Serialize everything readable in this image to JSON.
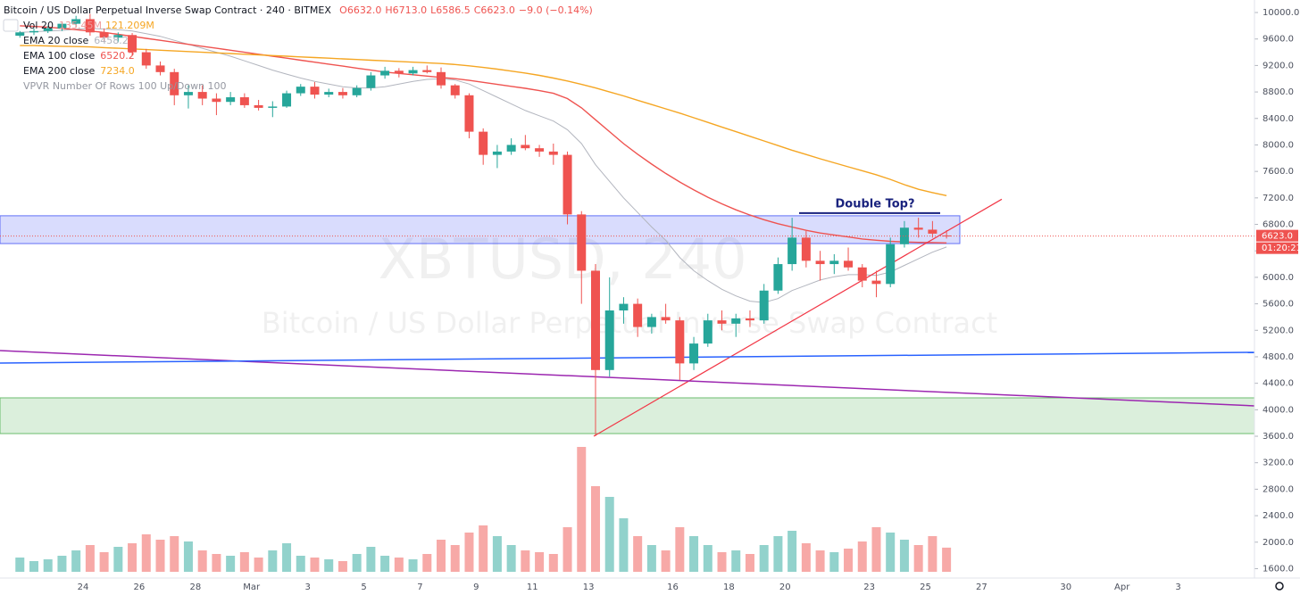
{
  "chart_data": {
    "type": "candlestick",
    "title": "Bitcoin / US Dollar Perpetual Inverse Swap Contract · 240 · BITMEX",
    "header": {
      "open": "O6632.0",
      "high": "H6713.0",
      "low": "L6586.5",
      "close": "C6623.0",
      "change": "−9.0 (−0.14%)"
    },
    "volume_legend": {
      "name": "Vol 20",
      "values": [
        "135.45M",
        "121.209M"
      ]
    },
    "vpvr_legend": "VPVR Number Of Rows 100 Up/Down 100",
    "watermark": [
      "XBTUSD, 240",
      "Bitcoin / US Dollar Perpetual Inverse Swap Contract"
    ],
    "categories": [
      null,
      null,
      null,
      null,
      null,
      "24",
      null,
      null,
      null,
      "26",
      null,
      null,
      null,
      "28",
      null,
      null,
      null,
      "Mar",
      null,
      null,
      null,
      "3",
      null,
      null,
      null,
      "5",
      null,
      null,
      null,
      "7",
      null,
      null,
      null,
      "9",
      null,
      null,
      null,
      "11",
      null,
      null,
      null,
      "13",
      null,
      null,
      null,
      null,
      null,
      "16",
      null,
      null,
      null,
      "18",
      null,
      null,
      null,
      "20",
      null,
      null,
      null,
      null,
      null,
      "23",
      null,
      null,
      null,
      "25",
      null,
      null,
      null,
      "27",
      null,
      null,
      null,
      null,
      null,
      "30",
      null,
      null,
      null,
      "Apr",
      null,
      null,
      null,
      "3",
      null
    ],
    "open": [
      9650,
      9700,
      9720,
      9760,
      9830,
      9900,
      9700,
      9620,
      9660,
      9400,
      9200,
      9100,
      8750,
      8800,
      8700,
      8650,
      8720,
      8600,
      8560,
      8580,
      8780,
      8880,
      8760,
      8800,
      8750,
      8860,
      9050,
      9120,
      9080,
      9130,
      9100,
      8900,
      8750,
      8200,
      7850,
      7900,
      8000,
      7950,
      7900,
      7850,
      6950,
      6100,
      4600,
      5500,
      5600,
      5250,
      5400,
      5350,
      4700,
      5000,
      5350,
      5300,
      5380,
      5350,
      5800,
      6200,
      6600,
      6250,
      6200,
      6250,
      6150,
      5950,
      5900,
      6500,
      6750,
      6720,
      6632,
      null,
      null,
      null,
      null,
      null,
      null,
      null,
      null,
      null,
      null,
      null,
      null,
      null,
      null,
      null,
      null,
      null,
      null
    ],
    "high": [
      9720,
      9760,
      9800,
      9850,
      9950,
      9980,
      9760,
      9700,
      9690,
      9450,
      9260,
      9150,
      8900,
      8900,
      8780,
      8800,
      8780,
      8680,
      8660,
      8820,
      8920,
      8950,
      8850,
      8860,
      8900,
      9100,
      9180,
      9160,
      9180,
      9200,
      9170,
      8920,
      8780,
      8250,
      8000,
      8100,
      8150,
      8000,
      8020,
      7900,
      7000,
      6200,
      6000,
      5700,
      5680,
      5450,
      5600,
      5400,
      5100,
      5450,
      5500,
      5450,
      5500,
      5900,
      6300,
      6900,
      6700,
      6400,
      6350,
      6450,
      6200,
      6100,
      6600,
      6850,
      6900,
      6850,
      6713,
      null,
      null,
      null,
      null,
      null,
      null,
      null,
      null,
      null,
      null,
      null,
      null,
      null,
      null,
      null,
      null,
      null,
      null
    ],
    "low": [
      9620,
      9660,
      9690,
      9720,
      9780,
      9650,
      9560,
      9550,
      9350,
      9150,
      9050,
      8600,
      8550,
      8600,
      8450,
      8600,
      8560,
      8520,
      8420,
      8560,
      8740,
      8700,
      8720,
      8700,
      8720,
      8820,
      9000,
      9020,
      9050,
      9080,
      8850,
      8700,
      8100,
      7700,
      7650,
      7850,
      7920,
      7820,
      7700,
      6800,
      5600,
      3600,
      4500,
      5300,
      5100,
      5150,
      5300,
      4450,
      4600,
      4950,
      5200,
      5100,
      5250,
      5300,
      5750,
      6100,
      6150,
      5950,
      6050,
      6100,
      5850,
      5700,
      5850,
      6450,
      6600,
      6600,
      6586.5,
      null,
      null,
      null,
      null,
      null,
      null,
      null,
      null,
      null,
      null,
      null,
      null,
      null,
      null,
      null,
      null,
      null,
      null
    ],
    "close": [
      9700,
      9720,
      9760,
      9830,
      9900,
      9700,
      9620,
      9660,
      9400,
      9200,
      9100,
      8750,
      8800,
      8700,
      8650,
      8720,
      8600,
      8560,
      8580,
      8780,
      8880,
      8760,
      8800,
      8750,
      8860,
      9050,
      9120,
      9080,
      9130,
      9100,
      8900,
      8750,
      8200,
      7850,
      7900,
      8000,
      7950,
      7900,
      7850,
      6950,
      6100,
      4600,
      5500,
      5600,
      5250,
      5400,
      5350,
      4700,
      5000,
      5350,
      5300,
      5380,
      5350,
      5800,
      6200,
      6600,
      6250,
      6200,
      6250,
      6150,
      5950,
      5900,
      6500,
      6750,
      6720,
      6660,
      6623,
      null,
      null,
      null,
      null,
      null,
      null,
      null,
      null,
      null,
      null,
      null,
      null,
      null,
      null,
      null,
      null,
      null,
      null
    ],
    "volume": [
      80,
      60,
      70,
      90,
      120,
      150,
      110,
      140,
      160,
      210,
      180,
      200,
      170,
      120,
      100,
      90,
      110,
      80,
      120,
      160,
      90,
      80,
      70,
      60,
      100,
      140,
      90,
      80,
      70,
      100,
      180,
      150,
      220,
      260,
      200,
      150,
      120,
      110,
      100,
      250,
      700,
      480,
      420,
      300,
      200,
      150,
      120,
      250,
      200,
      150,
      110,
      120,
      100,
      150,
      200,
      230,
      160,
      120,
      110,
      130,
      170,
      250,
      220,
      180,
      150,
      200,
      135.45,
      null,
      null,
      null,
      null,
      null,
      null,
      null,
      null,
      null,
      null,
      null,
      null,
      null,
      null,
      null,
      null,
      null,
      null
    ],
    "up_color": "#26a69a",
    "down_color": "#ef5350",
    "series": [
      {
        "name": "EMA 20 close",
        "last": "6458.2",
        "color": "#b2b5be",
        "values": [
          9700,
          9710,
          9720,
          9730,
          9750,
          9760,
          9750,
          9740,
          9720,
          9680,
          9640,
          9580,
          9520,
          9460,
          9400,
          9340,
          9270,
          9200,
          9130,
          9070,
          9010,
          8960,
          8920,
          8880,
          8860,
          8860,
          8880,
          8920,
          8960,
          8990,
          9000,
          8980,
          8920,
          8820,
          8720,
          8620,
          8520,
          8440,
          8360,
          8230,
          8020,
          7700,
          7450,
          7200,
          6980,
          6760,
          6560,
          6300,
          6100,
          5950,
          5820,
          5720,
          5640,
          5620,
          5680,
          5800,
          5880,
          5960,
          6010,
          6040,
          6040,
          6030,
          6080,
          6180,
          6280,
          6380,
          6458.2,
          null,
          null,
          null,
          null,
          null,
          null,
          null,
          null,
          null,
          null,
          null,
          null,
          null,
          null,
          null,
          null,
          null,
          null
        ]
      },
      {
        "name": "EMA 100 close",
        "last": "6520.2",
        "color": "#ef5350",
        "values": [
          9800,
          9790,
          9780,
          9760,
          9740,
          9720,
          9700,
          9670,
          9640,
          9610,
          9580,
          9550,
          9520,
          9490,
          9460,
          9430,
          9400,
          9370,
          9340,
          9310,
          9280,
          9250,
          9220,
          9190,
          9160,
          9130,
          9100,
          9080,
          9060,
          9040,
          9020,
          9000,
          8975,
          8945,
          8915,
          8885,
          8855,
          8820,
          8780,
          8700,
          8560,
          8380,
          8200,
          8020,
          7860,
          7710,
          7570,
          7440,
          7320,
          7210,
          7110,
          7020,
          6940,
          6870,
          6810,
          6760,
          6710,
          6670,
          6640,
          6610,
          6580,
          6560,
          6545,
          6535,
          6528,
          6524,
          6520.2,
          null,
          null,
          null,
          null,
          null,
          null,
          null,
          null,
          null,
          null,
          null,
          null,
          null,
          null,
          null,
          null,
          null,
          null
        ]
      },
      {
        "name": "EMA 200 close",
        "last": "7234.0",
        "color": "#f5a623",
        "values": [
          9500,
          9500,
          9495,
          9490,
          9485,
          9480,
          9470,
          9460,
          9450,
          9440,
          9430,
          9420,
          9410,
          9400,
          9390,
          9380,
          9370,
          9360,
          9350,
          9340,
          9330,
          9320,
          9310,
          9300,
          9290,
          9280,
          9270,
          9260,
          9250,
          9240,
          9230,
          9215,
          9195,
          9170,
          9145,
          9115,
          9085,
          9050,
          9010,
          8965,
          8915,
          8860,
          8800,
          8740,
          8675,
          8610,
          8545,
          8480,
          8410,
          8340,
          8270,
          8200,
          8130,
          8060,
          7990,
          7920,
          7855,
          7790,
          7730,
          7670,
          7610,
          7550,
          7480,
          7400,
          7330,
          7280,
          7234,
          null,
          null,
          null,
          null,
          null,
          null,
          null,
          null,
          null,
          null,
          null,
          null,
          null,
          null,
          null,
          null,
          null,
          null
        ]
      }
    ],
    "ylim": [
      1458,
      10189
    ],
    "yticks": [
      {
        "value": 1600,
        "label": "1600.0"
      },
      {
        "value": 2000,
        "label": "2000.0"
      },
      {
        "value": 2400,
        "label": "2400.0"
      },
      {
        "value": 2800,
        "label": "2800.0"
      },
      {
        "value": 3200,
        "label": "3200.0"
      },
      {
        "value": 3600,
        "label": "3600.0"
      },
      {
        "value": 4000,
        "label": "4000.0"
      },
      {
        "value": 4400,
        "label": "4400.0"
      },
      {
        "value": 4800,
        "label": "4800.0"
      },
      {
        "value": 5200,
        "label": "5200.0"
      },
      {
        "value": 5600,
        "label": "5600.0"
      },
      {
        "value": 6000,
        "label": "6000.0"
      },
      {
        "value": 6400,
        "label": "6400.0"
      },
      {
        "value": 6800,
        "label": "6800.0"
      },
      {
        "value": 7200,
        "label": "7200.0"
      },
      {
        "value": 7600,
        "label": "7600.0"
      },
      {
        "value": 8000,
        "label": "8000.0"
      },
      {
        "value": 8400,
        "label": "8400.0"
      },
      {
        "value": 8800,
        "label": "8800.0"
      },
      {
        "value": 9200,
        "label": "9200.0"
      },
      {
        "value": 9600,
        "label": "9600.0"
      },
      {
        "value": 10000,
        "label": "10000.0"
      }
    ],
    "volume_ylim": [
      0,
      1000
    ],
    "grid": false,
    "zones": [
      {
        "from": 6510,
        "to": 6930,
        "color": "#3f51f5"
      },
      {
        "from": 3640,
        "to": 4180,
        "color": "#4caf50"
      }
    ],
    "trend_lines": [
      {
        "from": 3600,
        "to": 7180,
        "color": "#f23645"
      },
      {
        "from": 4893,
        "to": 4059,
        "color": "#9c27b0"
      },
      {
        "from": 4705,
        "to": 4867,
        "color": "#2962ff"
      }
    ],
    "annotation": {
      "text": "Double Top?",
      "price": 6970,
      "color": "#1a237e"
    },
    "last_price": {
      "value": 6623,
      "label": "6623.0"
    },
    "countdown": "01:20:21"
  }
}
